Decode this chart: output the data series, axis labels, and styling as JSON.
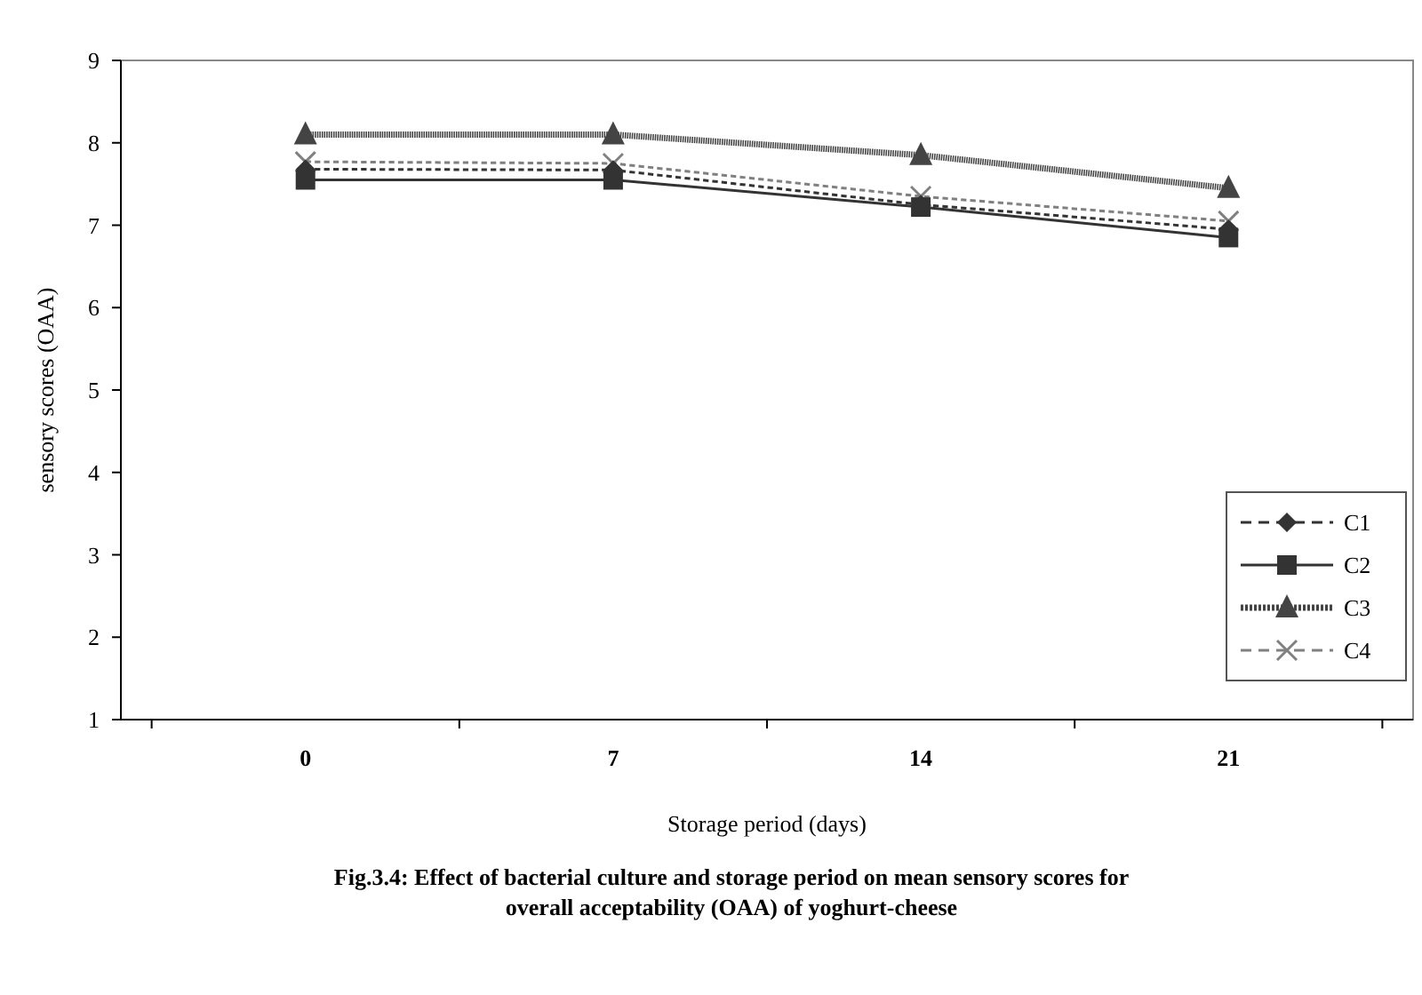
{
  "chart_data": {
    "type": "line",
    "title": "Fig.3.4:  Effect of bacterial culture and storage period on mean sensory scores for overall acceptability (OAA) of yoghurt-cheese",
    "xlabel": "Storage period (days)",
    "ylabel": "sensory scores (OAA)",
    "categories": [
      "0",
      "7",
      "14",
      "21"
    ],
    "ylim": [
      1,
      9
    ],
    "yticks": [
      1,
      2,
      3,
      4,
      5,
      6,
      7,
      8,
      9
    ],
    "grid": false,
    "legend": "bottom right",
    "series": [
      {
        "name": "C1",
        "color": "#333333",
        "marker": "diamond",
        "line_style": "dashed",
        "values": [
          7.68,
          7.67,
          7.25,
          6.95
        ]
      },
      {
        "name": "C2",
        "color": "#333333",
        "marker": "square",
        "line_style": "solid",
        "values": [
          7.55,
          7.55,
          7.22,
          6.85
        ]
      },
      {
        "name": "C3",
        "color": "#444444",
        "marker": "triangle",
        "line_style": "dotted",
        "values": [
          8.1,
          8.1,
          7.85,
          7.45
        ]
      },
      {
        "name": "C4",
        "color": "#808080",
        "marker": "cross",
        "line_style": "dashed",
        "values": [
          7.77,
          7.75,
          7.35,
          7.05
        ]
      }
    ]
  }
}
